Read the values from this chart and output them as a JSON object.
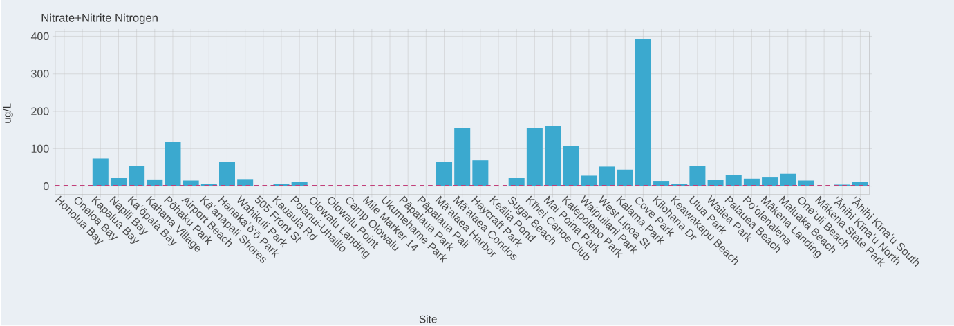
{
  "chart_data": {
    "type": "bar",
    "title": "Nitrate+Nitrite Nitrogen",
    "xlabel": "Site",
    "ylabel": "ug/L",
    "categories": [
      "Honolua Bay",
      "Oneloa Bay",
      "Kapalua Bay",
      "Napili Bay",
      "Kaʻōpala Bay",
      "Kahana Village",
      "Pōhaku Park",
      "Airport Beach",
      "Kāʻanapali Shores",
      "Hanakaʻōʻō Park",
      "Wahikuli Park",
      "505 Front St",
      "Kauaula Rd",
      "Polanui-Uhailio",
      "Olowalu Landing",
      "Olowalu Point",
      "Camp Olowalu",
      "Mile Marker 14",
      "Ukumehame Park",
      "Pāpalaua Park",
      "Pāpalaua Pali",
      "Māʻalaea Harbor",
      "Māʻalaea Condos",
      "Haycraft Park",
      "Keālia Pond",
      "Sugar Beach",
      "Kīhei Canoe Club",
      "Mai Poina Park",
      "Kalepolepo Park",
      "Waipuilani Park",
      "West Lipoa St",
      "Kalama Park",
      "Cove Park",
      "Kilohana Dr",
      "Keawakapu Beach",
      "Ulua Park",
      "Wailea Park",
      "Palauea Beach",
      "Poʻolenalena",
      "Mākena Landing",
      "Maluaka Beach",
      "Oneʻuli Beach",
      "Mākena State Park",
      "ʻĀhihi Kīnaʻu North",
      "ʻĀhihi Kīnaʻu South"
    ],
    "values": [
      null,
      null,
      74,
      22,
      54,
      18,
      117,
      15,
      6,
      64,
      19,
      null,
      5,
      11,
      null,
      null,
      null,
      null,
      null,
      null,
      null,
      64,
      154,
      69,
      null,
      22,
      156,
      160,
      107,
      28,
      52,
      44,
      393,
      14,
      6,
      54,
      16,
      29,
      20,
      25,
      33,
      15,
      null,
      4,
      12
    ],
    "color": "#3ba9cf",
    "ylim": [
      -22,
      412
    ],
    "yticks": [
      0,
      100,
      200,
      300,
      400
    ],
    "grid": true,
    "ref_lines": [
      {
        "axis": "y",
        "value": 1,
        "color": "#c2407a",
        "line_style": "dashed"
      }
    ]
  }
}
